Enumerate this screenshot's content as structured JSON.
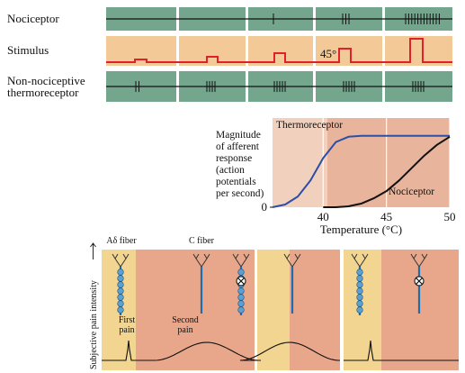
{
  "panel_a": {
    "rows": [
      [
        "Nociceptor"
      ],
      [
        "Stimulus"
      ],
      [
        "Non-nociceptive",
        "thermoreceptor"
      ]
    ],
    "stimulus_label": "45°"
  },
  "chart_data": {
    "type": "line",
    "x_label": "Temperature (°C)",
    "y_label": [
      "Magnitude",
      "of afferent",
      "response",
      "(action",
      "potentials",
      "per second)"
    ],
    "x": [
      36,
      37,
      38,
      39,
      40,
      41,
      42,
      43,
      44,
      45,
      46,
      47,
      48,
      49,
      50
    ],
    "series": [
      {
        "name": "Thermoreceptor",
        "color": "#2b4fa8",
        "values": [
          0,
          3,
          12,
          30,
          55,
          73,
          79,
          80,
          80,
          80,
          80,
          80,
          80,
          80,
          80
        ]
      },
      {
        "name": "Nociceptor",
        "color": "#111111",
        "values": [
          null,
          null,
          null,
          null,
          0,
          0,
          1,
          4,
          10,
          18,
          30,
          44,
          58,
          70,
          79
        ]
      }
    ],
    "xlim": [
      36,
      50
    ],
    "ylim": [
      0,
      100
    ],
    "xticks": [
      40,
      45,
      50
    ],
    "yticks": [
      0
    ],
    "grid": true
  },
  "panel_c": {
    "y_axis_label": "Subjective pain intensity",
    "fiber_labels": [
      "Aδ fiber",
      "C fiber"
    ],
    "pain_labels": [
      [
        "First",
        "pain"
      ],
      [
        "Second",
        "pain"
      ]
    ]
  }
}
